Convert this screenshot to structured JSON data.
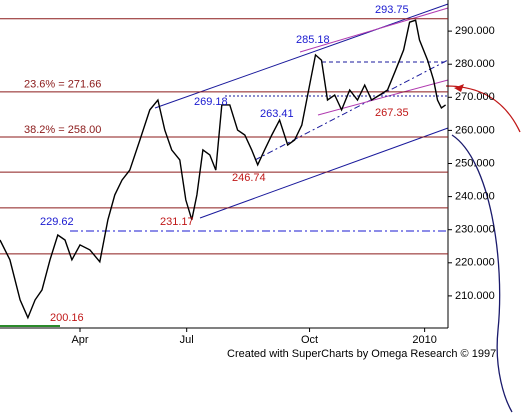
{
  "chart_data": {
    "type": "line",
    "color": "#000000",
    "x": [
      0,
      3.3,
      6.7,
      9.3,
      11.7,
      14,
      16.7,
      19.3,
      21.7,
      24,
      26.7,
      30,
      33.3,
      36,
      38.3,
      40.7,
      43.3,
      46.7,
      50,
      52.7,
      55,
      57.3,
      60,
      62,
      64,
      65.7,
      67.7,
      70,
      72,
      74,
      76.7,
      79.3,
      81.7,
      84,
      86,
      88.3,
      90.7,
      93.3,
      96,
      98.3,
      100.7,
      103.3,
      105.3,
      107.3,
      109.3,
      111.7,
      114,
      116.7,
      119.3,
      121.7,
      124,
      126.7,
      129.3,
      132,
      134.7,
      136.7,
      138.7,
      140,
      142.7,
      144.7,
      146,
      147.3,
      148.7
    ],
    "values": [
      226.9,
      220.9,
      208.8,
      203.4,
      208.8,
      211.8,
      220.9,
      228.4,
      226.9,
      220.9,
      225.4,
      223.9,
      220.3,
      233.0,
      240.5,
      245.0,
      248.0,
      257.1,
      266.2,
      269.2,
      260.1,
      254.1,
      251.1,
      239.0,
      233.0,
      240.5,
      254.1,
      252.6,
      248.0,
      267.7,
      267.7,
      260.1,
      258.6,
      254.1,
      249.6,
      254.1,
      258.6,
      263.1,
      255.6,
      257.1,
      261.6,
      273.7,
      282.8,
      281.2,
      269.2,
      270.7,
      266.2,
      272.2,
      269.2,
      273.7,
      269.2,
      270.7,
      272.2,
      278.2,
      284.3,
      292.7,
      293.3,
      287.3,
      281.2,
      275.2,
      269.2,
      266.8,
      267.7
    ],
    "xlim": [
      0,
      149.5
    ],
    "xticks": [
      {
        "value": 26.7,
        "label": "Apr"
      },
      {
        "value": 62.3,
        "label": "Jul"
      },
      {
        "value": 103.3,
        "label": "Oct"
      },
      {
        "value": 141.7,
        "label": "2010"
      }
    ],
    "ylim": [
      200.3,
      299.4
    ],
    "yticks": [
      {
        "value": 210,
        "label": "210.000"
      },
      {
        "value": 220,
        "label": "220.000"
      },
      {
        "value": 230,
        "label": "230.000"
      },
      {
        "value": 240,
        "label": "240.000"
      },
      {
        "value": 250,
        "label": "250.000"
      },
      {
        "value": 260,
        "label": "260.000"
      },
      {
        "value": 270,
        "label": "270.000"
      },
      {
        "value": 280,
        "label": "280.000"
      },
      {
        "value": 290,
        "label": "290.000"
      }
    ],
    "levels": [
      293.75,
      {
        "value": 271.66,
        "label": "23.6% = 271.66"
      },
      {
        "value": 258.0,
        "label": "38.2% = 258.00"
      },
      247.4,
      236.6,
      222.7
    ],
    "level_color": "#8b1a1a",
    "support_level": 229.62,
    "annotations": [
      "293.75",
      "285.18",
      "269.18",
      "263.41",
      "267.35",
      "246.74",
      "231.17",
      "229.62",
      "200.16"
    ],
    "footer": "Created with SuperCharts by Omega Research © 1997"
  }
}
